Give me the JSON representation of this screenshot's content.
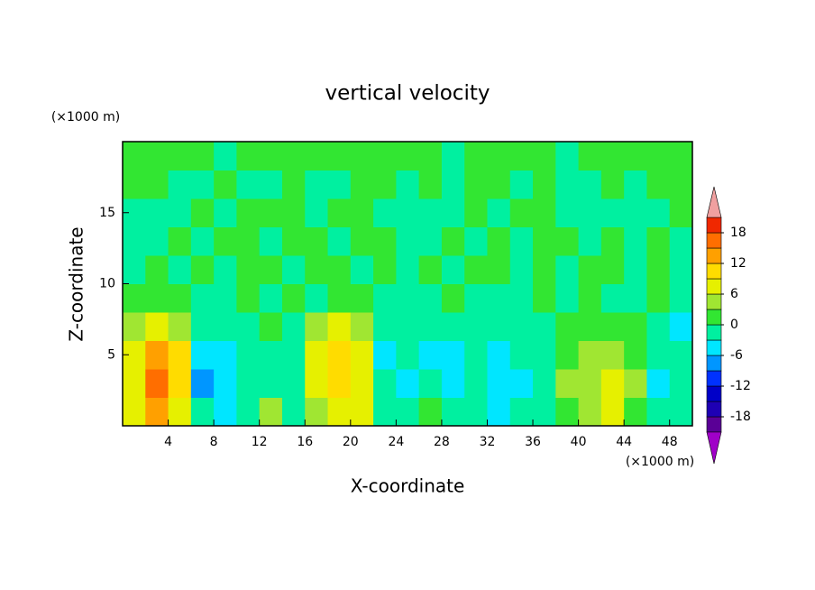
{
  "chart_data": {
    "type": "contour",
    "title": "vertical velocity",
    "x_label": "X-coordinate",
    "y_label": "Z-coordinate",
    "x_unit": "(×1000 m)",
    "y_unit": "(×1000 m)",
    "xlim": [
      0,
      50
    ],
    "ylim": [
      0,
      20
    ],
    "xticks": [
      4,
      8,
      12,
      16,
      20,
      24,
      28,
      32,
      36,
      40,
      44,
      48
    ],
    "yticks": [
      5,
      10,
      15
    ],
    "x": [
      1,
      3,
      5,
      7,
      9,
      11,
      13,
      15,
      17,
      19,
      21,
      23,
      25,
      27,
      29,
      31,
      33,
      35,
      37,
      39,
      41,
      43,
      45,
      47,
      49
    ],
    "y": [
      1,
      3,
      5,
      7,
      9,
      11,
      13,
      15,
      17,
      19
    ],
    "z": [
      [
        6,
        12,
        8,
        -3,
        -5,
        -2,
        3,
        -2,
        4,
        8,
        6,
        -2,
        -3,
        1,
        -2,
        -3,
        -4,
        -3,
        -1,
        2,
        5,
        6,
        2,
        -2,
        -1
      ],
      [
        8,
        15,
        10,
        -8,
        -4,
        -3,
        -1,
        -2,
        6,
        9,
        8,
        -3,
        -5,
        -2,
        -4,
        -2,
        -6,
        -4,
        -2,
        3,
        5,
        7,
        4,
        -4,
        -2
      ],
      [
        7,
        14,
        9,
        -6,
        -4,
        -2,
        -2,
        -3,
        6,
        10,
        8,
        -4,
        -3,
        -4,
        -5,
        -3,
        -4,
        -3,
        -2,
        1,
        4,
        3,
        2,
        -3,
        -3
      ],
      [
        4,
        8,
        5,
        -2,
        -3,
        -2,
        1,
        -2,
        4,
        6,
        5,
        -3,
        -2,
        -3,
        -2,
        -1,
        -3,
        -2,
        -1,
        1,
        2,
        2,
        1,
        -2,
        -4
      ],
      [
        1,
        2,
        1,
        -1,
        -1,
        1,
        -1,
        1,
        -1,
        2,
        1,
        -1,
        -1,
        -1,
        1,
        -1,
        -1,
        -1,
        1,
        -1,
        1,
        -1,
        -1,
        1,
        -1
      ],
      [
        -1,
        1,
        -1,
        1,
        -1,
        1,
        1,
        -1,
        1,
        1,
        -1,
        1,
        -1,
        1,
        -1,
        1,
        1,
        -1,
        1,
        -1,
        1,
        1,
        -1,
        1,
        -1
      ],
      [
        -1,
        -1,
        1,
        -1,
        1,
        1,
        -1,
        1,
        1,
        -1,
        1,
        1,
        -1,
        -1,
        1,
        -1,
        1,
        -1,
        1,
        1,
        -1,
        1,
        -1,
        1,
        -1
      ],
      [
        -1,
        -1,
        -1,
        1,
        -1,
        1,
        1,
        1,
        -1,
        1,
        1,
        -1,
        -1,
        -1,
        -1,
        1,
        -1,
        1,
        1,
        -1,
        -1,
        -1,
        -1,
        -1,
        1
      ],
      [
        1,
        1,
        -1,
        -1,
        1,
        -1,
        -1,
        1,
        -1,
        -1,
        1,
        1,
        -1,
        1,
        -1,
        1,
        1,
        -1,
        1,
        -1,
        -1,
        1,
        -1,
        1,
        1
      ],
      [
        1,
        1,
        1,
        1,
        -1,
        1,
        1,
        1,
        1,
        1,
        1,
        1,
        1,
        1,
        -1,
        1,
        1,
        1,
        1,
        -1,
        1,
        1,
        1,
        1,
        1
      ]
    ],
    "levels": [
      -21,
      -18,
      -15,
      -12,
      -9,
      -6,
      -3,
      0,
      3,
      6,
      9,
      12,
      15,
      18,
      21
    ],
    "colors": [
      "#a000c8",
      "#5a0096",
      "#1e00b4",
      "#0000c8",
      "#0032ff",
      "#0096ff",
      "#00e6ff",
      "#00f0a0",
      "#32e632",
      "#a0e632",
      "#e6f000",
      "#ffdc00",
      "#ffa000",
      "#ff6e00",
      "#f02800",
      "#f0a0a0"
    ],
    "colorbar_ticks": [
      18,
      12,
      6,
      0,
      -6,
      -12,
      -18
    ]
  }
}
